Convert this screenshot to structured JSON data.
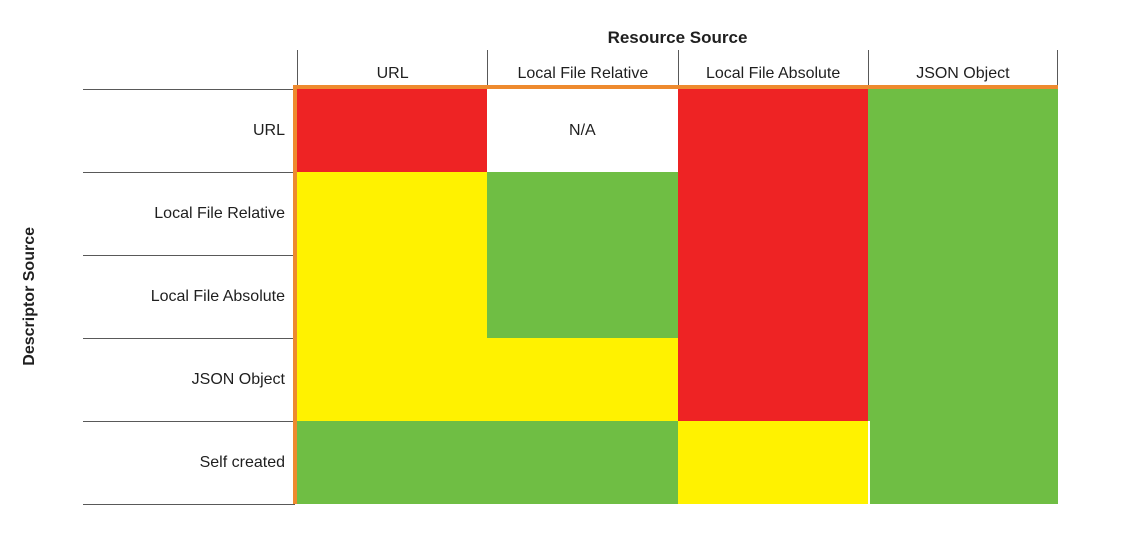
{
  "chart_data": {
    "type": "heatmap",
    "title": "Resource Source",
    "row_axis_label": "Descriptor Source",
    "col_axis_label": "Resource Source",
    "columns": [
      "URL",
      "Local File Relative",
      "Local File Absolute",
      "JSON Object"
    ],
    "rows": [
      "URL",
      "Local File Relative",
      "Local File Absolute",
      "JSON Object",
      "Self created"
    ],
    "cells": [
      [
        "red",
        "na",
        "red",
        "green"
      ],
      [
        "yellow",
        "green",
        "red",
        "green"
      ],
      [
        "yellow",
        "green",
        "red",
        "green"
      ],
      [
        "yellow",
        "yellow",
        "red",
        "green"
      ],
      [
        "green",
        "green",
        "yellow",
        "green"
      ]
    ],
    "na_text": "N/A",
    "palette": {
      "red": "#EE2324",
      "yellow": "#FFF200",
      "green": "#6FBE44",
      "na": "#FFFFFF"
    },
    "grid_border_color": "#EE8A2E",
    "line_color": "#595959",
    "legend": "none",
    "grid": "off"
  }
}
